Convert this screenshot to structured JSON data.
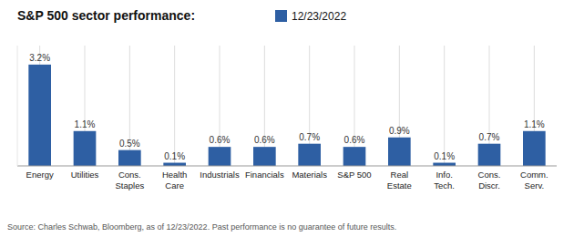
{
  "chart_data": {
    "type": "bar",
    "title": "S&P 500 sector performance:",
    "categories": [
      "Energy",
      "Utilities",
      "Cons.\nStaples",
      "Health\nCare",
      "Industrials",
      "Financials",
      "Materials",
      "S&P 500",
      "Real\nEstate",
      "Info.\nTech.",
      "Cons.\nDiscr.",
      "Comm.\nServ."
    ],
    "series": [
      {
        "name": "12/23/2022",
        "color": "#2e5fa3",
        "values": [
          3.2,
          1.1,
          0.5,
          0.1,
          0.6,
          0.6,
          0.7,
          0.6,
          0.9,
          0.1,
          0.7,
          1.1
        ],
        "value_labels": [
          "3.2%",
          "1.1%",
          "0.5%",
          "0.1%",
          "0.6%",
          "0.6%",
          "0.7%",
          "0.6%",
          "0.9%",
          "0.1%",
          "0.7%",
          "1.1%"
        ]
      }
    ],
    "ylim": [
      0,
      3.8
    ],
    "grid": true,
    "legend": "top",
    "data_labels": true,
    "tick_labels": "x",
    "annotations": [
      "Source: Charles Schwab, Bloomberg, as of 12/23/2022. Past performance is no guarantee of future results."
    ]
  }
}
